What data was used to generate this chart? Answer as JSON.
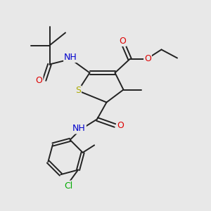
{
  "bg_color": "#e8e8e8",
  "atom_colors": {
    "S": "#aaaa00",
    "N": "#0000cc",
    "O": "#dd0000",
    "C": "#000000",
    "H": "#555555",
    "Cl": "#00aa00"
  },
  "bond_color": "#222222",
  "bond_width": 1.4,
  "fig_bg": "#e8e8e8"
}
